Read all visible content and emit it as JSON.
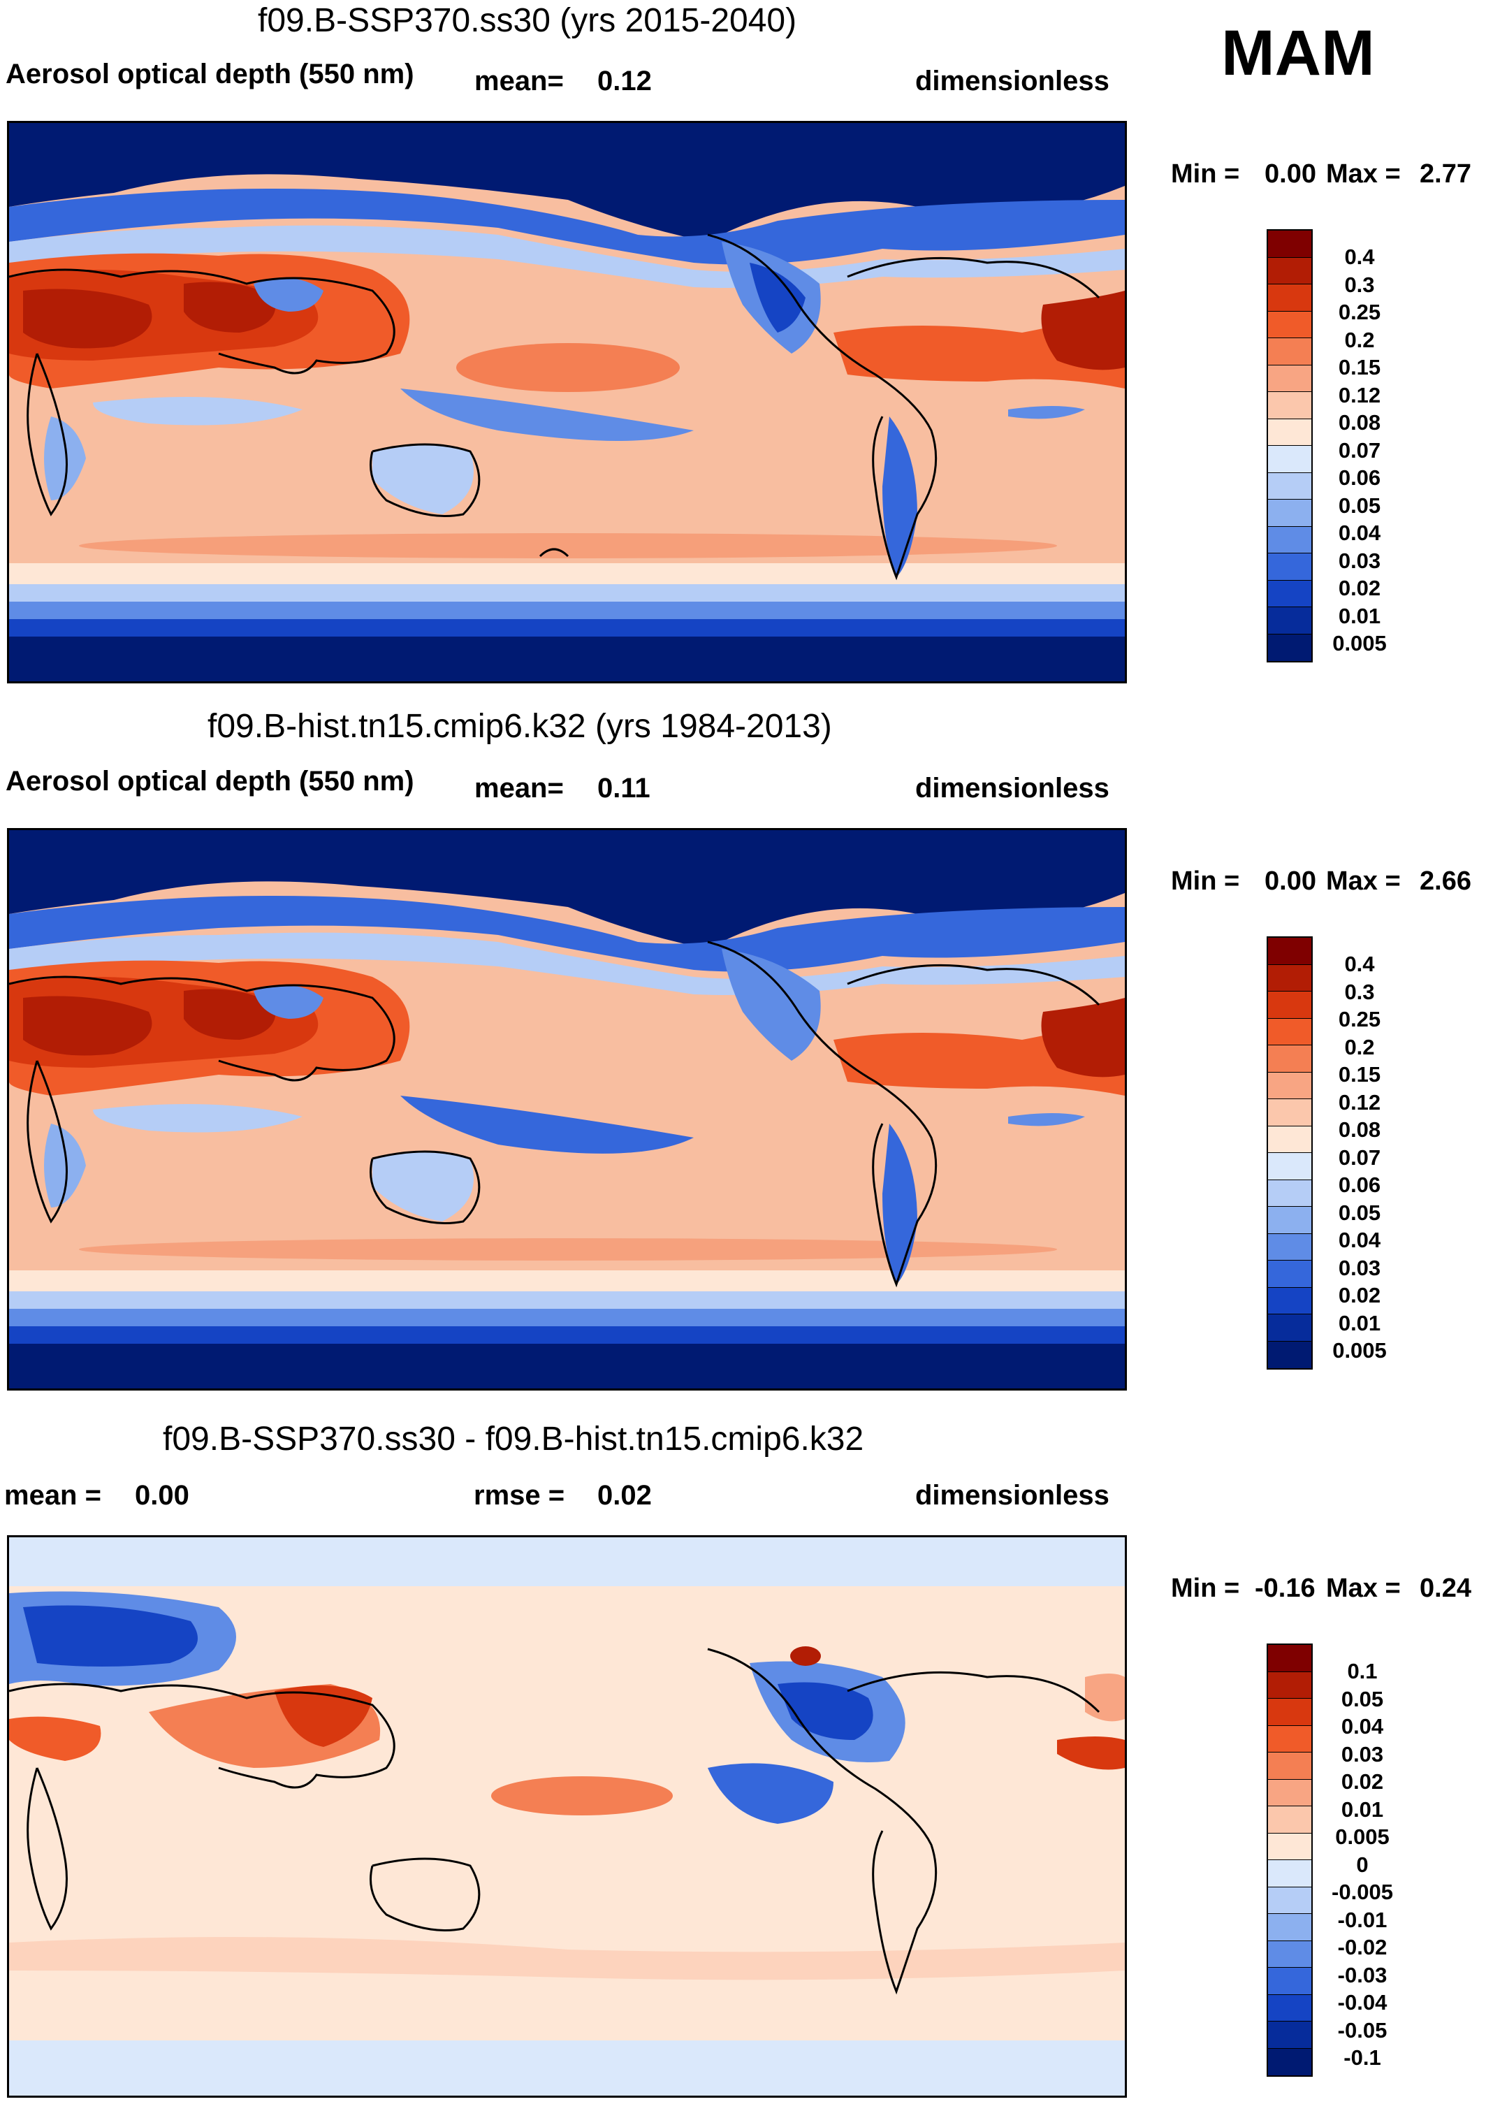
{
  "season": "MAM",
  "panels": [
    {
      "title": "f09.B-SSP370.ss30 (yrs 2015-2040)",
      "variable": "Aerosol optical depth (550 nm)",
      "mean_label": "mean=",
      "mean_value": "0.12",
      "units": "dimensionless",
      "min_label": "Min =",
      "min_value": "0.00",
      "max_label": "Max =",
      "max_value": "2.77",
      "levels": [
        "0.4",
        "0.3",
        "0.25",
        "0.2",
        "0.15",
        "0.12",
        "0.08",
        "0.07",
        "0.06",
        "0.05",
        "0.04",
        "0.03",
        "0.02",
        "0.01",
        "0.005"
      ]
    },
    {
      "title": "f09.B-hist.tn15.cmip6.k32 (yrs 1984-2013)",
      "variable": "Aerosol optical depth (550 nm)",
      "mean_label": "mean=",
      "mean_value": "0.11",
      "units": "dimensionless",
      "min_label": "Min =",
      "min_value": "0.00",
      "max_label": "Max =",
      "max_value": "2.66",
      "levels": [
        "0.4",
        "0.3",
        "0.25",
        "0.2",
        "0.15",
        "0.12",
        "0.08",
        "0.07",
        "0.06",
        "0.05",
        "0.04",
        "0.03",
        "0.02",
        "0.01",
        "0.005"
      ]
    },
    {
      "title": "f09.B-SSP370.ss30 - f09.B-hist.tn15.cmip6.k32",
      "mean_label": "mean =",
      "mean_value": "0.00",
      "rmse_label": "rmse =",
      "rmse_value": "0.02",
      "units": "dimensionless",
      "min_label": "Min =",
      "min_value": "-0.16",
      "max_label": "Max =",
      "max_value": "0.24",
      "levels": [
        "0.1",
        "0.05",
        "0.04",
        "0.03",
        "0.02",
        "0.01",
        "0.005",
        "0",
        "-0.005",
        "-0.01",
        "-0.02",
        "-0.03",
        "-0.04",
        "-0.05",
        "-0.1"
      ]
    }
  ],
  "colorbar_colors": [
    "#7f0000",
    "#b21d05",
    "#d8380f",
    "#f05b29",
    "#f47f53",
    "#f8a583",
    "#fbc7ac",
    "#fee7d6",
    "#dae8fb",
    "#b5cdf6",
    "#8cb0ef",
    "#5f8ce6",
    "#3567db",
    "#1544c4",
    "#062c9b",
    "#001a72"
  ],
  "colors": {
    "ocean_mid": "#f8bea0",
    "high_lat": "#001a72",
    "text": "#000000"
  }
}
